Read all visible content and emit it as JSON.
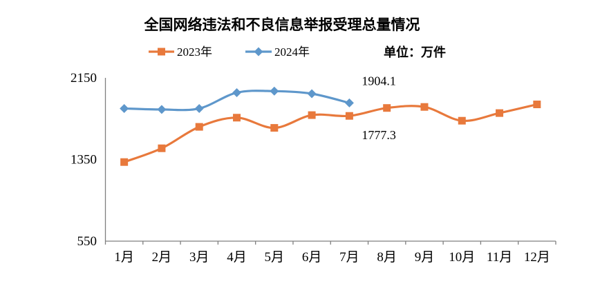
{
  "page": {
    "background": "#ffffff",
    "text_color": "#000000",
    "axis_color": "#7f7f7f"
  },
  "chart_data": {
    "type": "line",
    "title": "全国网络违法和不良信息举报受理总量情况",
    "unit_label": "单位：万件",
    "categories": [
      "1月",
      "2月",
      "3月",
      "4月",
      "5月",
      "6月",
      "7月",
      "8月",
      "9月",
      "10月",
      "11月",
      "12月"
    ],
    "series": [
      {
        "name": "2023年",
        "color": "#E8793C",
        "marker": "square",
        "values": [
          1325,
          1460,
          1670,
          1760,
          1660,
          1785,
          1777.3,
          1855,
          1865,
          1730,
          1805,
          1890
        ]
      },
      {
        "name": "2024年",
        "color": "#5E97CB",
        "marker": "diamond",
        "values": [
          1850,
          1840,
          1850,
          2005,
          2020,
          1995,
          1904.1
        ]
      }
    ],
    "yticks": [
      550,
      1350,
      2150
    ],
    "ylim": [
      550,
      2150
    ],
    "grid": false,
    "legend_position": "top",
    "line_style": "smooth",
    "annotations": [
      {
        "text": "1904.1",
        "series_index": 1,
        "category_index": 6,
        "placement": "above"
      },
      {
        "text": "1777.3",
        "series_index": 0,
        "category_index": 6,
        "placement": "below"
      }
    ]
  }
}
